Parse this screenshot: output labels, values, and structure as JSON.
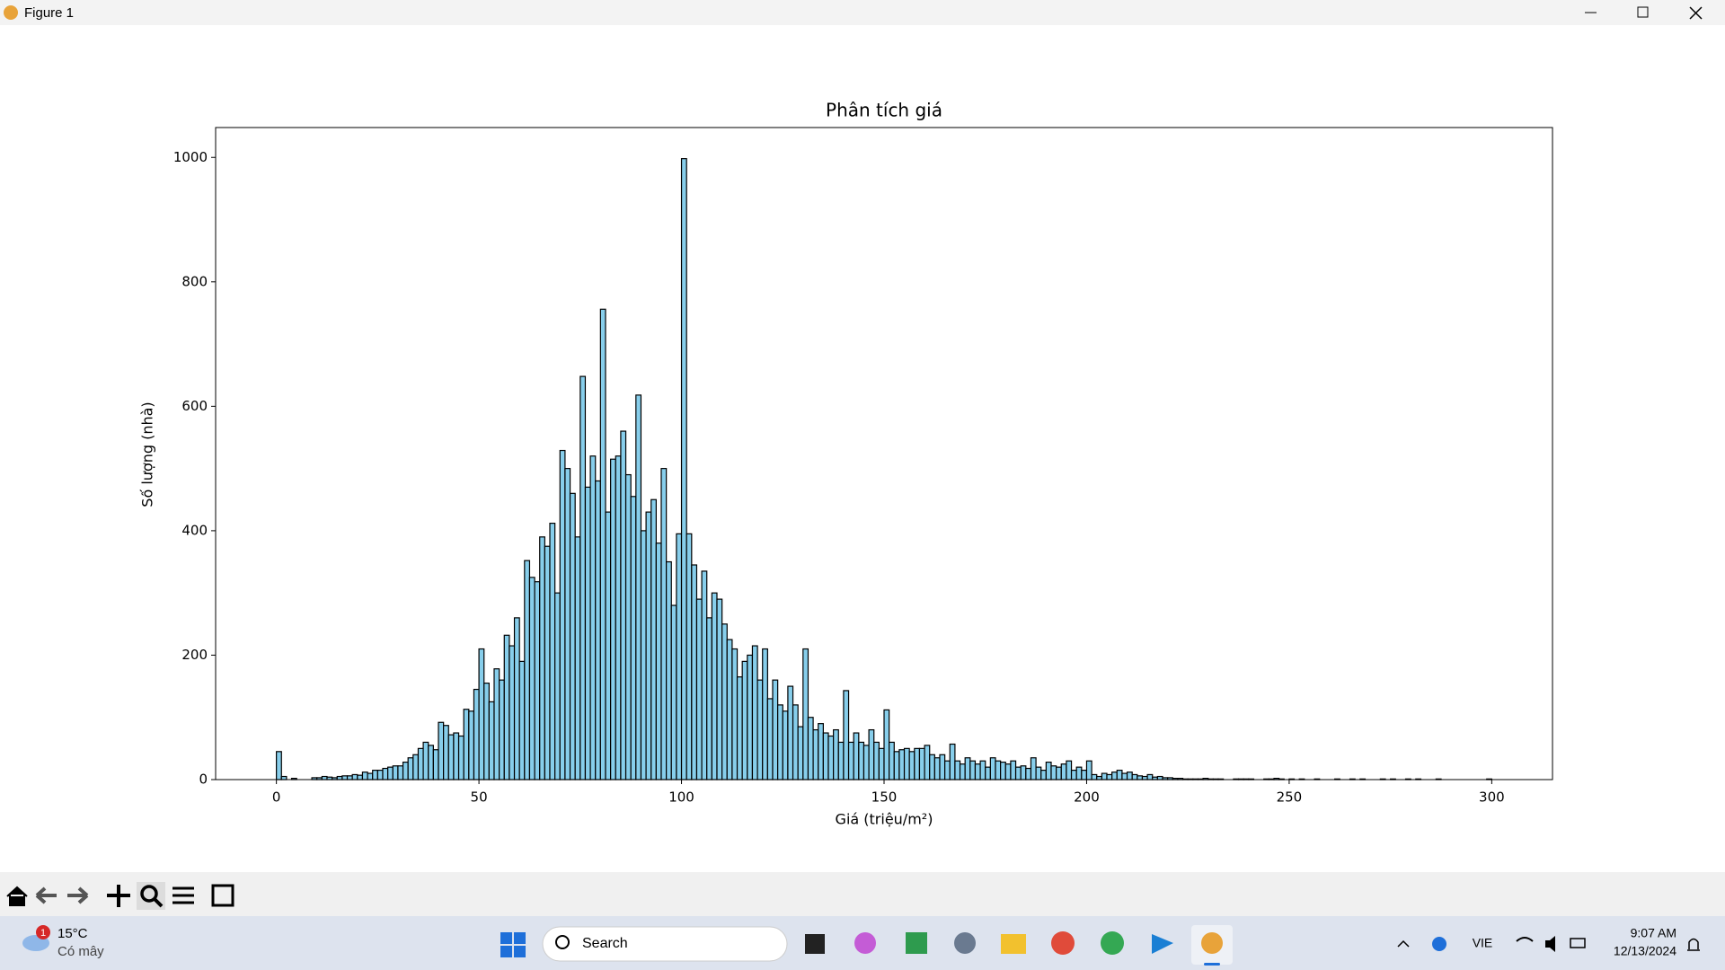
{
  "window": {
    "title": "Figure 1"
  },
  "chart_data": {
    "type": "histogram",
    "title": "Phân tích giá",
    "x_label": "Giá (triệu/m²)",
    "y_label": "Số lượng (nhà)",
    "color": "#87ceeb",
    "edge_color": "#000000",
    "bins": [
      0,
      1.25,
      2.5,
      3.75,
      5,
      6.25,
      7.5,
      8.75,
      10,
      11.25,
      12.5,
      13.75,
      15,
      16.25,
      17.5,
      18.75,
      20,
      21.25,
      22.5,
      23.75,
      25,
      26.25,
      27.5,
      28.75,
      30,
      31.25,
      32.5,
      33.75,
      35,
      36.25,
      37.5,
      38.75,
      40,
      41.25,
      42.5,
      43.75,
      45,
      46.25,
      47.5,
      48.75,
      50,
      51.25,
      52.5,
      53.75,
      55,
      56.25,
      57.5,
      58.75,
      60,
      61.25,
      62.5,
      63.75,
      65,
      66.25,
      67.5,
      68.75,
      70,
      71.25,
      72.5,
      73.75,
      75,
      76.25,
      77.5,
      78.75,
      80,
      81.25,
      82.5,
      83.75,
      85,
      86.25,
      87.5,
      88.75,
      90,
      91.25,
      92.5,
      93.75,
      95,
      96.25,
      97.5,
      98.75,
      100,
      101.25,
      102.5,
      103.75,
      105,
      106.25,
      107.5,
      108.75,
      110,
      111.25,
      112.5,
      113.75,
      115,
      116.25,
      117.5,
      118.75,
      120,
      121.25,
      122.5,
      123.75,
      125,
      126.25,
      127.5,
      128.75,
      130,
      131.25,
      132.5,
      133.75,
      135,
      136.25,
      137.5,
      138.75,
      140,
      141.25,
      142.5,
      143.75,
      145,
      146.25,
      147.5,
      148.75,
      150,
      151.25,
      152.5,
      153.75,
      155,
      156.25,
      157.5,
      158.75,
      160,
      161.25,
      162.5,
      163.75,
      165,
      166.25,
      167.5,
      168.75,
      170,
      171.25,
      172.5,
      173.75,
      175,
      176.25,
      177.5,
      178.75,
      180,
      181.25,
      182.5,
      183.75,
      185,
      186.25,
      187.5,
      188.75,
      190,
      191.25,
      192.5,
      193.75,
      195,
      196.25,
      197.5,
      198.75,
      200,
      201.25,
      202.5,
      203.75,
      205,
      206.25,
      207.5,
      208.75,
      210,
      211.25,
      212.5,
      213.75,
      215,
      216.25,
      217.5,
      218.75,
      220,
      221.25,
      222.5,
      223.75,
      225,
      226.25,
      227.5,
      228.75,
      230,
      231.25,
      232.5,
      233.75,
      235,
      236.25,
      237.5,
      238.75,
      240,
      241.25,
      242.5,
      243.75,
      245,
      246.25,
      247.5,
      248.75,
      250,
      251.25,
      252.5,
      253.75,
      255,
      256.25,
      257.5,
      258.75,
      260,
      261.25,
      262.5,
      263.75,
      265,
      266.25,
      267.5,
      268.75,
      270,
      271.25,
      272.5,
      273.75,
      275,
      276.25,
      277.5,
      278.75,
      280,
      281.25,
      282.5,
      283.75,
      285,
      286.25,
      287.5,
      288.75,
      290,
      291.25,
      292.5,
      293.75,
      295,
      296.25,
      297.5,
      298.75,
      300
    ],
    "values": [
      45,
      5,
      0,
      2,
      0,
      0,
      0,
      3,
      3,
      5,
      4,
      3,
      5,
      6,
      6,
      8,
      7,
      12,
      10,
      15,
      15,
      18,
      20,
      22,
      22,
      28,
      35,
      40,
      50,
      60,
      55,
      48,
      92,
      87,
      72,
      75,
      70,
      113,
      110,
      145,
      210,
      155,
      125,
      178,
      160,
      232,
      215,
      260,
      190,
      352,
      325,
      318,
      390,
      375,
      412,
      300,
      529,
      500,
      460,
      390,
      648,
      470,
      520,
      480,
      756,
      430,
      515,
      520,
      560,
      490,
      455,
      618,
      400,
      430,
      450,
      380,
      500,
      350,
      280,
      395,
      998,
      395,
      345,
      290,
      335,
      260,
      300,
      290,
      250,
      225,
      210,
      165,
      190,
      200,
      215,
      160,
      210,
      130,
      160,
      120,
      110,
      150,
      120,
      85,
      210,
      100,
      80,
      90,
      75,
      70,
      80,
      60,
      143,
      60,
      75,
      60,
      55,
      80,
      60,
      50,
      112,
      60,
      45,
      48,
      50,
      45,
      50,
      50,
      55,
      40,
      35,
      40,
      30,
      57,
      30,
      25,
      35,
      30,
      25,
      30,
      20,
      35,
      30,
      28,
      25,
      30,
      20,
      22,
      18,
      35,
      20,
      15,
      28,
      22,
      20,
      25,
      30,
      15,
      20,
      15,
      30,
      8,
      5,
      10,
      8,
      12,
      15,
      10,
      12,
      8,
      6,
      5,
      8,
      4,
      5,
      3,
      3,
      2,
      2,
      1,
      1,
      1,
      1,
      2,
      1,
      1,
      1,
      0,
      0,
      1,
      1,
      1,
      1,
      0,
      0,
      1,
      1,
      2,
      1,
      0,
      1,
      0,
      1,
      0,
      0,
      1,
      0,
      0,
      0,
      1,
      0,
      0,
      1,
      0,
      1,
      0,
      0,
      0,
      1,
      0,
      1,
      0,
      0,
      1,
      0,
      1,
      0,
      0,
      0,
      1,
      0,
      0,
      0,
      0,
      0,
      0,
      0,
      0,
      0,
      1
    ],
    "xlim": [
      -15,
      315
    ],
    "ylim": [
      0,
      1048
    ],
    "xticks": [
      0,
      50,
      100,
      150,
      200,
      250,
      300
    ],
    "yticks": [
      0,
      200,
      400,
      600,
      800,
      1000
    ]
  },
  "taskbar": {
    "badge": "1",
    "temperature": "15°C",
    "weather": "Có mây",
    "search": "Search",
    "language": "VIE",
    "time": "9:07 AM",
    "date": "12/13/2024"
  }
}
